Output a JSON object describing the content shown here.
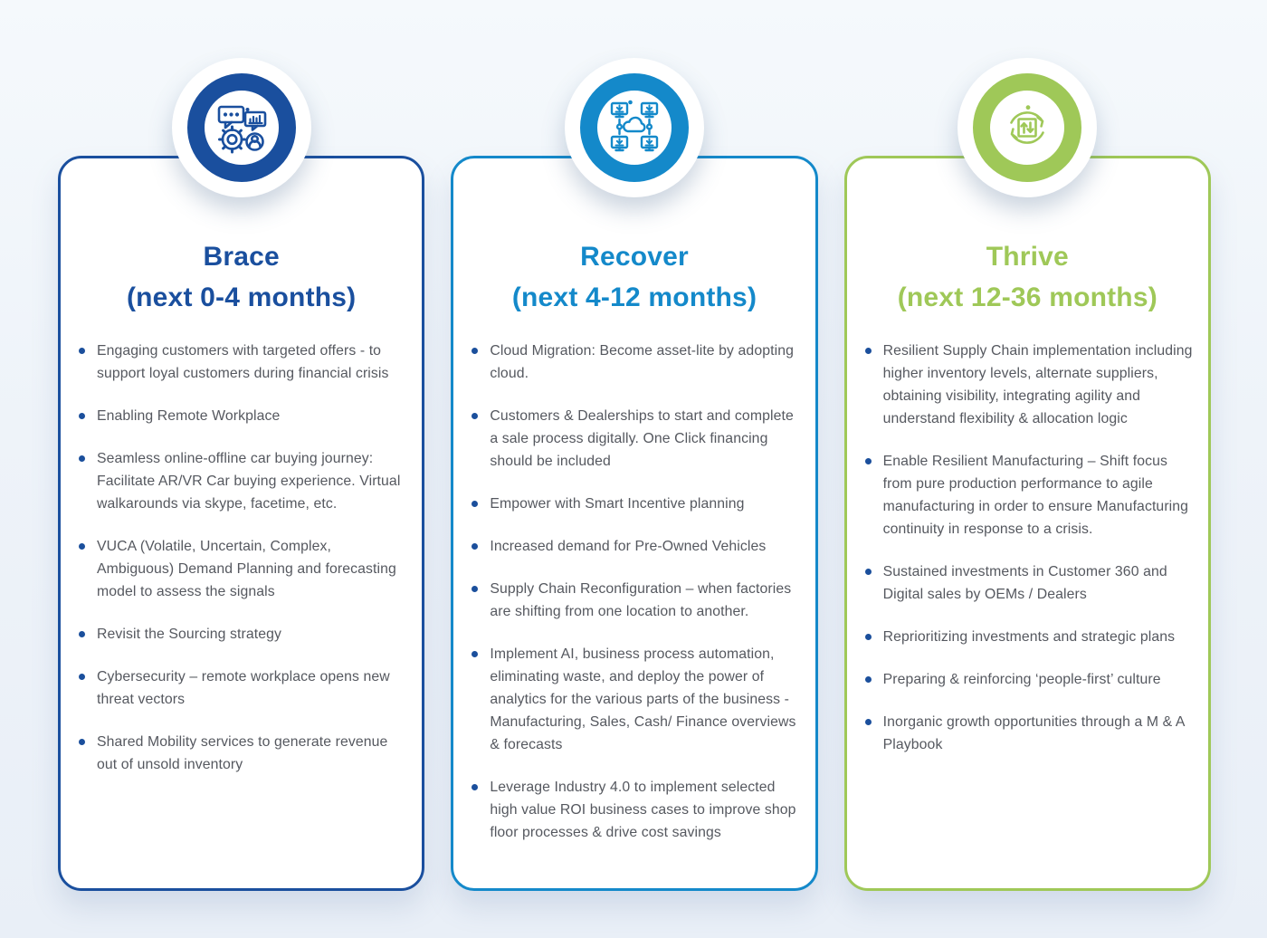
{
  "page": {
    "background_color": "#eef3f9",
    "bullet_color": "#1b4f9c",
    "body_text_color": "#55585f"
  },
  "cards": [
    {
      "id": "brace",
      "accent_color": "#1a4f9e",
      "icon": "gear-chat-analytics-icon",
      "title": "Brace",
      "subtitle": "(next 0-4 months)",
      "bullets": [
        "Engaging customers with targeted offers - to support loyal customers during financial crisis",
        "Enabling Remote Workplace",
        "Seamless online-offline car buying journey: Facilitate AR/VR Car buying experience. Virtual walkarounds via skype, facetime, etc.",
        "VUCA (Volatile, Uncertain, Complex, Ambiguous) Demand Planning and forecasting model to assess the signals",
        "Revisit the Sourcing strategy",
        "Cybersecurity – remote workplace opens new threat vectors",
        "Shared Mobility services to generate revenue out of unsold inventory"
      ]
    },
    {
      "id": "recover",
      "accent_color": "#1489ca",
      "icon": "cloud-network-monitors-icon",
      "title": "Recover",
      "subtitle": "(next 4-12 months)",
      "bullets": [
        "Cloud Migration: Become asset-lite by adopting cloud.",
        "Customers & Dealerships to start and complete a sale process digitally. One Click financing should be included",
        "Empower with Smart Incentive planning",
        "Increased demand for Pre-Owned Vehicles",
        "Supply Chain Reconfiguration – when factories are shifting from one location to another.",
        "Implement AI, business process automation, eliminating waste,  and deploy the power of analytics for the various parts of the business -  Manufacturing, Sales, Cash/ Finance overviews & forecasts",
        "Leverage Industry 4.0 to implement selected high value ROI business cases to improve shop floor processes & drive cost savings"
      ]
    },
    {
      "id": "thrive",
      "accent_color": "#9fc858",
      "icon": "cycle-arrows-icon",
      "title": "Thrive",
      "subtitle": "(next 12-36 months)",
      "bullets": [
        "Resilient Supply Chain implementation including higher inventory levels, alternate suppliers, obtaining visibility, integrating agility and understand flexibility & allocation logic",
        "Enable Resilient Manufacturing – Shift focus from pure production performance to agile manufacturing  in order to ensure Manufacturing continuity in response to a crisis.",
        "Sustained investments in Customer 360 and Digital sales by OEMs / Dealers",
        "Reprioritizing investments and strategic plans",
        "Preparing & reinforcing ‘people-first’ culture",
        "Inorganic growth opportunities through a M & A Playbook"
      ]
    }
  ]
}
